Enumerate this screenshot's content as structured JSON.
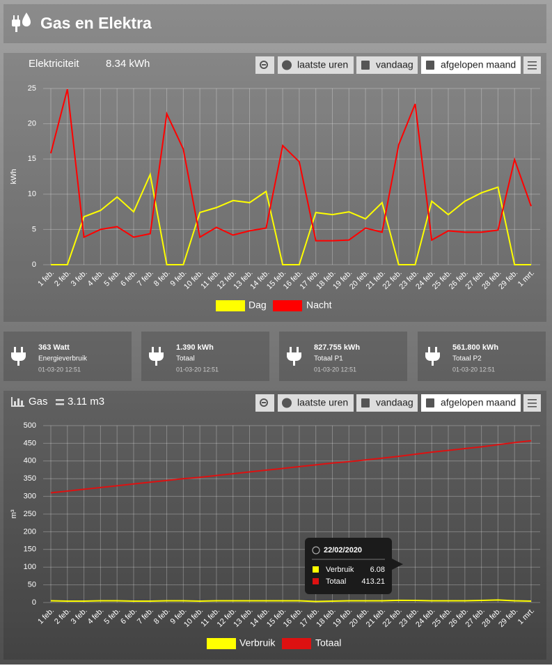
{
  "header": {
    "title": "Gas en Elektra"
  },
  "chart_data": [
    {
      "type": "line",
      "title": "Elektriciteit",
      "subtitle": "8.34 kWh",
      "buttons": [
        "laatste uren",
        "vandaag",
        "afgelopen maand"
      ],
      "y_label": "kWh",
      "categories": [
        "1 feb.",
        "2 feb.",
        "3 feb.",
        "4 feb.",
        "5 feb.",
        "6 feb.",
        "7 feb.",
        "8 feb.",
        "9 feb.",
        "10 feb.",
        "11 feb.",
        "12 feb.",
        "13 feb.",
        "14 feb.",
        "15 feb.",
        "16 feb.",
        "17 feb.",
        "18 feb.",
        "19 feb.",
        "20 feb.",
        "21 feb.",
        "22 feb.",
        "23 feb.",
        "24 feb.",
        "25 feb.",
        "26 feb.",
        "27 feb.",
        "28 feb.",
        "29 feb.",
        "1 mrt."
      ],
      "series": [
        {
          "name": "Dag",
          "color": "#ffff00",
          "values": [
            0,
            0,
            6.8,
            7.7,
            9.6,
            7.5,
            12.8,
            0,
            0,
            7.4,
            8.1,
            9.1,
            8.8,
            10.4,
            0,
            0,
            7.4,
            7.1,
            7.5,
            6.5,
            8.8,
            0,
            0,
            9.0,
            7.1,
            9.0,
            10.2,
            11.0,
            0,
            0
          ]
        },
        {
          "name": "Nacht",
          "color": "#ff0000",
          "values": [
            15.8,
            24.9,
            3.9,
            5.0,
            5.4,
            3.9,
            4.4,
            21.4,
            16.4,
            3.9,
            5.3,
            4.2,
            4.8,
            5.2,
            16.9,
            14.6,
            3.4,
            3.4,
            3.5,
            5.2,
            4.6,
            17.0,
            22.8,
            3.5,
            4.8,
            4.6,
            4.6,
            4.9,
            14.9,
            8.3
          ]
        }
      ],
      "ylim": [
        0,
        25
      ],
      "yticks": [
        0,
        5,
        10,
        15,
        20,
        25
      ],
      "grid": true
    },
    {
      "type": "line",
      "title": "Gas",
      "subtitle": "3.11 m3",
      "buttons": [
        "laatste uren",
        "vandaag",
        "afgelopen maand"
      ],
      "y_label": "m³",
      "categories": [
        "1 feb.",
        "2 feb.",
        "3 feb.",
        "4 feb.",
        "5 feb.",
        "6 feb.",
        "7 feb.",
        "8 feb.",
        "9 feb.",
        "10 feb.",
        "11 feb.",
        "12 feb.",
        "13 feb.",
        "14 feb.",
        "15 feb.",
        "16 feb.",
        "17 feb.",
        "18 feb.",
        "19 feb.",
        "20 feb.",
        "21 feb.",
        "22 feb.",
        "23 feb.",
        "24 feb.",
        "25 feb.",
        "26 feb.",
        "27 feb.",
        "28 feb.",
        "29 feb.",
        "1 mrt."
      ],
      "series": [
        {
          "name": "Verbruik",
          "color": "#ffff00",
          "values": [
            5,
            4,
            4,
            5,
            5,
            4,
            4,
            5,
            5,
            4,
            5,
            5,
            5,
            5,
            5,
            5,
            3,
            4,
            5,
            5,
            5,
            6.08,
            6,
            5,
            5,
            5,
            6,
            7,
            5,
            4
          ]
        },
        {
          "name": "Totaal",
          "color": "#dd1111",
          "values": [
            310,
            315,
            320,
            325,
            330,
            335,
            340,
            345,
            350,
            354,
            359,
            364,
            369,
            374,
            379,
            384,
            389,
            394,
            398,
            403,
            408,
            413.21,
            419,
            425,
            430,
            435,
            440,
            446,
            452,
            457
          ]
        }
      ],
      "ylim": [
        0,
        500
      ],
      "yticks": [
        0,
        50,
        100,
        150,
        200,
        250,
        300,
        350,
        400,
        450,
        500
      ],
      "grid": true,
      "tooltip": {
        "title": "22/02/2020"
      }
    }
  ],
  "cards": [
    {
      "value": "363 Watt",
      "label": "Energieverbruik",
      "time": "01-03-20 12:51"
    },
    {
      "value": "1.390 kWh",
      "label": "Totaal",
      "time": "01-03-20 12:51"
    },
    {
      "value": "827.755 kWh",
      "label": "Totaal P1",
      "time": "01-03-20 12:51"
    },
    {
      "value": "561.800 kWh",
      "label": "Totaal P2",
      "time": "01-03-20 12:51"
    }
  ]
}
